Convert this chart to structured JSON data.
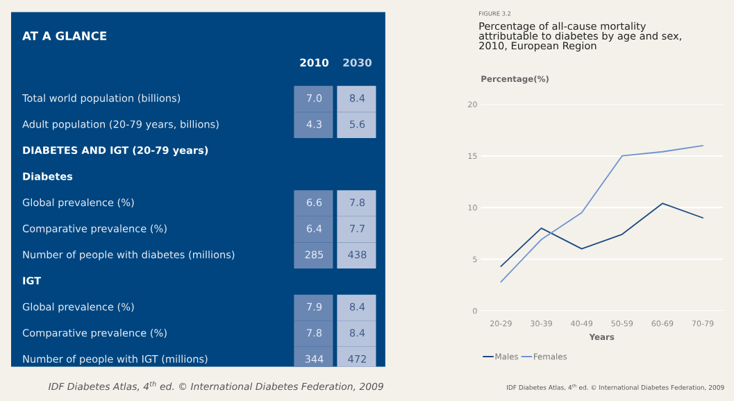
{
  "chart_data": [
    {
      "type": "other",
      "title": "AT A GLANCE",
      "categories": [
        "2010",
        "2030"
      ],
      "y_categories": [
        "Total world population (billions)",
        "Adult population (20-79 years, billions)",
        "DIABETES AND IGT (20-79 years)",
        "Diabetes",
        "Global prevalence (%)",
        "Comparative prevalence (%)",
        "Number of people with diabetes (millions)",
        "IGT",
        "Global prevalence (%)",
        "Comparative prevalence (%)",
        "Number of people with IGT (millions)"
      ],
      "cell_labels": [
        [
          "7.0",
          "8.4"
        ],
        [
          "4.3",
          "5.6"
        ],
        null,
        null,
        [
          "6.6",
          "7.8"
        ],
        [
          "6.4",
          "7.7"
        ],
        [
          "285",
          "438"
        ],
        null,
        [
          "7.9",
          "8.4"
        ],
        [
          "7.8",
          "8.4"
        ],
        [
          "344",
          "472"
        ]
      ],
      "annotations": [
        "IDF Diabetes Atlas, 4$^{th}$ ed. © International Diabetes Federation, 2009"
      ]
    },
    {
      "type": "line",
      "subtitle": "FIGURE 3.2",
      "title": "Percentage of all-cause mortality\nattributable to diabetes by age and sex,\n2010, European Region",
      "ylabel": "Percentage(%)",
      "xlabel": "Years",
      "categories": [
        "20-29",
        "30-39",
        "40-49",
        "50-59",
        "60-69",
        "70-79"
      ],
      "series": [
        {
          "name": "Males",
          "color": "#1d4a80",
          "values": [
            4.3,
            8.0,
            6.0,
            7.4,
            10.4,
            9.0
          ]
        },
        {
          "name": "Females",
          "color": "#6f93cf",
          "values": [
            2.8,
            6.9,
            9.5,
            15.0,
            15.4,
            16.0
          ]
        }
      ],
      "ylim": [
        0,
        20
      ],
      "yticks": [
        0,
        5,
        10,
        15,
        20
      ],
      "grid": "y",
      "legend": "bottom",
      "marker": "none",
      "line_style": "solid",
      "annotations": [
        "IDF Diabetes Atlas, 4$^{th}$ ed. © International Diabetes Federation, 2009"
      ]
    }
  ]
}
